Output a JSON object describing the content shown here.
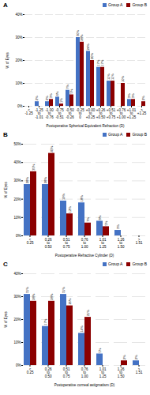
{
  "chart_data": [
    {
      "type": "bar",
      "title": "A",
      "xlabel": "Postoperative Spherical Equivalent Refraction (D)",
      "ylabel": "% of Eyes",
      "categories": [
        "<\n-1.25",
        "-1.25\nto\n-1.01",
        "-1.00\nto\n-0.76",
        "-0.75\nto\n-0.51",
        "-0.50\nto\n-0.26",
        "-0.25\nto\n0",
        "+0.00\nto\n+0.25",
        "+0.26\nto\n+0.50",
        "+0.51\nto\n+0.75",
        "+0.76\nto\n+1.00",
        "+1.01\nto\n+1.25",
        ">\n+1.25"
      ],
      "series": [
        {
          "name": "Group A",
          "color": "#4472c4",
          "values": [
            0,
            2,
            2,
            4,
            7,
            30,
            24,
            17,
            11,
            0,
            3,
            0
          ],
          "value_labels": [
            null,
            "2%",
            "2%",
            "4%",
            "7%",
            "30%",
            "24%",
            "17%",
            "11%",
            null,
            "3%",
            null
          ]
        },
        {
          "name": "Group B",
          "color": "#8b0000",
          "values": [
            0,
            0,
            3,
            1,
            5,
            28,
            20,
            17,
            11,
            10,
            3,
            2
          ],
          "value_labels": [
            null,
            null,
            "3%",
            "1%",
            "5%",
            "28%",
            "20%",
            "17%",
            "11%",
            "10%",
            "3%",
            "2%"
          ]
        }
      ],
      "ylim": [
        0,
        40
      ],
      "yticks": [
        {
          "value": 0,
          "label": "0%"
        },
        {
          "value": 10,
          "label": "10%"
        },
        {
          "value": 20,
          "label": "20%"
        },
        {
          "value": 30,
          "label": "30%"
        },
        {
          "value": 40,
          "label": "40%"
        }
      ],
      "grid": true,
      "legend": "upper right",
      "data_labels": true
    },
    {
      "type": "bar",
      "title": "B",
      "xlabel": "Postoperative Refractive Cylinder (D)",
      "ylabel": "% of Eyes",
      "categories": [
        "<\n0.25",
        "0.26\nto\n0.50",
        "0.51\nto\n0.75",
        "0.76\nto\n1.00",
        "1.01\nto\n1.25",
        "1.26\nto\n1.50",
        ">\n1.51"
      ],
      "series": [
        {
          "name": "Group A",
          "color": "#4472c4",
          "values": [
            28,
            28,
            19,
            18,
            8,
            3,
            0
          ],
          "value_labels": [
            "28%",
            "28%",
            "19%",
            "18%",
            "8%",
            "3%",
            null
          ]
        },
        {
          "name": "Group B",
          "color": "#8b0000",
          "values": [
            35,
            45,
            12,
            7,
            5,
            0,
            0
          ],
          "value_labels": [
            "35%",
            "45%",
            "12%",
            "7%",
            "5%",
            null,
            null
          ]
        }
      ],
      "ylim": [
        0,
        50
      ],
      "yticks": [
        {
          "value": 0,
          "label": "0%"
        },
        {
          "value": 10,
          "label": "10%"
        },
        {
          "value": 20,
          "label": "20%"
        },
        {
          "value": 30,
          "label": "30%"
        },
        {
          "value": 40,
          "label": "40%"
        },
        {
          "value": 50,
          "label": "50%"
        }
      ],
      "grid": true,
      "legend": "upper right",
      "data_labels": true
    },
    {
      "type": "bar",
      "title": "C",
      "xlabel": "Postoperative corneal astigmatism (D)",
      "ylabel": "% of Eyes",
      "categories": [
        "<\n0.25",
        "0.26\nto\n0.50",
        "0.51\nto\n0.75",
        "0.76\nto\n1.00",
        "1.01\nto\n1.25",
        "1.26\nto\n1.50",
        ">\n1.51"
      ],
      "series": [
        {
          "name": "Group A",
          "color": "#4472c4",
          "values": [
            31,
            17,
            31,
            14,
            5,
            0,
            2
          ],
          "value_labels": [
            "31%",
            "17%",
            "31%",
            "14%",
            "5%",
            null,
            "2%"
          ]
        },
        {
          "name": "Group B",
          "color": "#8b0000",
          "values": [
            28,
            28,
            26,
            21,
            0,
            2,
            0
          ],
          "value_labels": [
            "28%",
            "28%",
            "26%",
            "21%",
            null,
            "2%",
            null
          ]
        }
      ],
      "ylim": [
        0,
        40
      ],
      "yticks": [
        {
          "value": 0,
          "label": "0%"
        },
        {
          "value": 10,
          "label": "10%"
        },
        {
          "value": 20,
          "label": "20%"
        },
        {
          "value": 30,
          "label": "30%"
        },
        {
          "value": 40,
          "label": "40%"
        }
      ],
      "grid": true,
      "legend": "upper right",
      "data_labels": true
    }
  ]
}
